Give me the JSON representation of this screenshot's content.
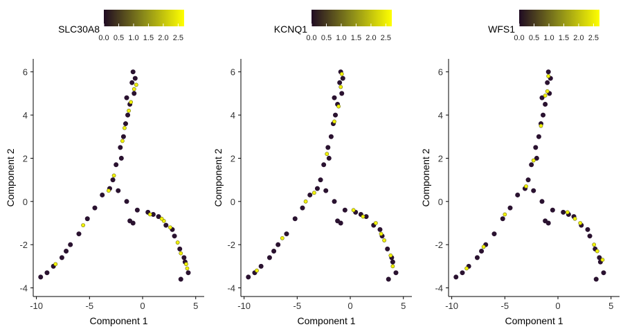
{
  "chart_data": [
    {
      "type": "scatter",
      "title": "",
      "xlabel": "Component 1",
      "ylabel": "Component 2",
      "xlim": [
        -10.3,
        5.8
      ],
      "ylim": [
        -4.4,
        6.6
      ],
      "xticks": [
        -10,
        -5,
        0,
        5
      ],
      "yticks": [
        -4,
        -2,
        0,
        2,
        4,
        6
      ],
      "color_legend": {
        "title": "SLC30A8",
        "ticks": [
          "0.0",
          "0.5",
          "1.0",
          "1.5",
          "2.0",
          "2.5"
        ],
        "range": [
          0,
          2.7
        ],
        "position": "top"
      },
      "series": [
        {
          "values": [
            [
              -0.9,
              6.0
            ],
            [
              -1.0,
              5.5
            ],
            [
              -0.8,
              5.0
            ],
            [
              -1.2,
              4.5
            ],
            [
              -1.4,
              4.0
            ],
            [
              -1.6,
              3.6
            ],
            [
              -1.8,
              3.0
            ],
            [
              -2.1,
              2.5
            ],
            [
              -2.5,
              1.7
            ],
            [
              -2.8,
              1.0
            ],
            [
              -3.1,
              0.6
            ],
            [
              -3.8,
              0.3
            ],
            [
              -4.5,
              -0.3
            ],
            [
              -5.2,
              -0.8
            ],
            [
              -6.0,
              -1.5
            ],
            [
              -6.8,
              -2.0
            ],
            [
              -7.6,
              -2.6
            ],
            [
              -8.4,
              -3.0
            ],
            [
              -9.0,
              -3.3
            ],
            [
              -9.6,
              -3.5
            ],
            [
              -2.3,
              0.5
            ],
            [
              -1.5,
              0.0
            ],
            [
              -0.5,
              -0.4
            ],
            [
              0.5,
              -0.5
            ],
            [
              1.5,
              -0.7
            ],
            [
              2.2,
              -1.1
            ],
            [
              3.0,
              -1.6
            ],
            [
              3.5,
              -2.2
            ],
            [
              4.0,
              -2.8
            ],
            [
              4.3,
              -3.3
            ],
            [
              3.6,
              -3.6
            ],
            [
              -1.2,
              -0.9
            ],
            [
              -0.9,
              -1.0
            ],
            [
              -1.5,
              4.8
            ],
            [
              -0.7,
              5.7
            ],
            [
              1.0,
              -0.6
            ],
            [
              2.8,
              -1.3
            ],
            [
              -7.2,
              -2.3
            ],
            [
              -2.0,
              2.0
            ],
            [
              3.9,
              -2.6
            ]
          ]
        },
        {
          "values": [
            [
              -0.8,
              5.2
            ],
            [
              -1.3,
              4.2
            ],
            [
              -1.9,
              2.8
            ],
            [
              -2.7,
              1.2
            ],
            [
              -3.2,
              0.5
            ],
            [
              0.7,
              -0.6
            ],
            [
              2.0,
              -0.9
            ],
            [
              3.3,
              -1.9
            ],
            [
              4.1,
              -2.9
            ],
            [
              -8.2,
              -2.9
            ],
            [
              -1.1,
              4.6
            ],
            [
              -0.6,
              5.4
            ],
            [
              1.8,
              -0.8
            ],
            [
              3.6,
              -2.4
            ],
            [
              -5.6,
              -1.1
            ],
            [
              2.6,
              -1.2
            ],
            [
              4.2,
              -3.1
            ],
            [
              -1.7,
              3.4
            ]
          ]
        }
      ]
    },
    {
      "type": "scatter",
      "title": "",
      "xlabel": "Component 1",
      "ylabel": "Component 2",
      "xlim": [
        -10.3,
        5.8
      ],
      "ylim": [
        -4.4,
        6.6
      ],
      "xticks": [
        -10,
        -5,
        0,
        5
      ],
      "yticks": [
        -4,
        -2,
        0,
        2,
        4,
        6
      ],
      "color_legend": {
        "title": "KCNQ1",
        "ticks": [
          "0.0",
          "0.5",
          "1.0",
          "1.5",
          "2.0",
          "2.5"
        ],
        "range": [
          0,
          2.7
        ],
        "position": "top"
      },
      "series": [
        {
          "values": [
            [
              -0.9,
              6.0
            ],
            [
              -1.0,
              5.5
            ],
            [
              -0.8,
              5.0
            ],
            [
              -1.2,
              4.5
            ],
            [
              -1.4,
              4.0
            ],
            [
              -1.6,
              3.6
            ],
            [
              -1.8,
              3.0
            ],
            [
              -2.1,
              2.5
            ],
            [
              -2.5,
              1.7
            ],
            [
              -2.8,
              1.0
            ],
            [
              -3.1,
              0.6
            ],
            [
              -3.8,
              0.3
            ],
            [
              -4.5,
              -0.3
            ],
            [
              -5.2,
              -0.8
            ],
            [
              -6.0,
              -1.5
            ],
            [
              -6.8,
              -2.0
            ],
            [
              -7.6,
              -2.6
            ],
            [
              -8.4,
              -3.0
            ],
            [
              -9.0,
              -3.3
            ],
            [
              -9.6,
              -3.5
            ],
            [
              -2.3,
              0.5
            ],
            [
              -1.5,
              0.0
            ],
            [
              -0.5,
              -0.4
            ],
            [
              0.5,
              -0.5
            ],
            [
              1.5,
              -0.7
            ],
            [
              2.2,
              -1.1
            ],
            [
              3.0,
              -1.6
            ],
            [
              3.5,
              -2.2
            ],
            [
              4.0,
              -2.8
            ],
            [
              4.3,
              -3.3
            ],
            [
              3.6,
              -3.6
            ],
            [
              -1.2,
              -0.9
            ],
            [
              -0.9,
              -1.0
            ],
            [
              -1.5,
              4.8
            ],
            [
              -0.7,
              5.7
            ],
            [
              1.0,
              -0.6
            ],
            [
              2.8,
              -1.3
            ],
            [
              -7.2,
              -2.3
            ],
            [
              -2.0,
              2.0
            ],
            [
              3.9,
              -2.6
            ]
          ]
        },
        {
          "values": [
            [
              -0.8,
              5.9
            ],
            [
              -1.1,
              4.4
            ],
            [
              -1.5,
              3.7
            ],
            [
              -2.2,
              2.2
            ],
            [
              -3.4,
              0.4
            ],
            [
              1.2,
              -0.7
            ],
            [
              2.4,
              -1.0
            ],
            [
              3.2,
              -1.8
            ],
            [
              3.8,
              -2.5
            ],
            [
              -8.8,
              -3.2
            ],
            [
              -4.2,
              0.0
            ],
            [
              -0.9,
              5.3
            ],
            [
              2.9,
              -1.5
            ],
            [
              4.0,
              -3.0
            ],
            [
              -6.4,
              -1.7
            ],
            [
              0.3,
              -0.4
            ]
          ]
        }
      ]
    },
    {
      "type": "scatter",
      "title": "",
      "xlabel": "Component 1",
      "ylabel": "Component 2",
      "xlim": [
        -10.3,
        5.8
      ],
      "ylim": [
        -4.4,
        6.6
      ],
      "xticks": [
        -10,
        -5,
        0,
        5
      ],
      "yticks": [
        -4,
        -2,
        0,
        2,
        4,
        6
      ],
      "color_legend": {
        "title": "WFS1",
        "ticks": [
          "0.0",
          "0.5",
          "1.0",
          "1.5",
          "2.0",
          "2.5"
        ],
        "range": [
          0,
          2.7
        ],
        "position": "top"
      },
      "series": [
        {
          "values": [
            [
              -0.9,
              6.0
            ],
            [
              -1.0,
              5.5
            ],
            [
              -0.8,
              5.0
            ],
            [
              -1.2,
              4.5
            ],
            [
              -1.4,
              4.0
            ],
            [
              -1.6,
              3.6
            ],
            [
              -1.8,
              3.0
            ],
            [
              -2.1,
              2.5
            ],
            [
              -2.5,
              1.7
            ],
            [
              -2.8,
              1.0
            ],
            [
              -3.1,
              0.6
            ],
            [
              -3.8,
              0.3
            ],
            [
              -4.5,
              -0.3
            ],
            [
              -5.2,
              -0.8
            ],
            [
              -6.0,
              -1.5
            ],
            [
              -6.8,
              -2.0
            ],
            [
              -7.6,
              -2.6
            ],
            [
              -8.4,
              -3.0
            ],
            [
              -9.0,
              -3.3
            ],
            [
              -9.6,
              -3.5
            ],
            [
              -2.3,
              0.5
            ],
            [
              -1.5,
              0.0
            ],
            [
              -0.5,
              -0.4
            ],
            [
              0.5,
              -0.5
            ],
            [
              1.5,
              -0.7
            ],
            [
              2.2,
              -1.1
            ],
            [
              3.0,
              -1.6
            ],
            [
              3.5,
              -2.2
            ],
            [
              4.0,
              -2.8
            ],
            [
              4.3,
              -3.3
            ],
            [
              3.6,
              -3.6
            ],
            [
              -1.2,
              -0.9
            ],
            [
              -0.9,
              -1.0
            ],
            [
              -1.5,
              4.8
            ],
            [
              -0.7,
              5.7
            ],
            [
              1.0,
              -0.6
            ],
            [
              2.8,
              -1.3
            ],
            [
              -7.2,
              -2.3
            ],
            [
              -2.0,
              2.0
            ],
            [
              3.9,
              -2.6
            ]
          ]
        },
        {
          "values": [
            [
              -0.9,
              5.8
            ],
            [
              -1.2,
              4.9
            ],
            [
              -1.6,
              3.5
            ],
            [
              -2.3,
              1.9
            ],
            [
              -3.0,
              0.7
            ],
            [
              0.9,
              -0.5
            ],
            [
              2.1,
              -1.0
            ],
            [
              3.4,
              -2.0
            ],
            [
              4.2,
              -2.7
            ],
            [
              -8.6,
              -3.1
            ],
            [
              -5.0,
              -0.6
            ],
            [
              -1.0,
              5.1
            ],
            [
              1.6,
              -0.8
            ],
            [
              3.7,
              -2.3
            ],
            [
              -7.0,
              -2.1
            ]
          ]
        }
      ]
    }
  ],
  "colors": {
    "low": "#2a1230",
    "mid": "#6b6b12",
    "high": "#f2f20a",
    "axis": "#000000"
  }
}
